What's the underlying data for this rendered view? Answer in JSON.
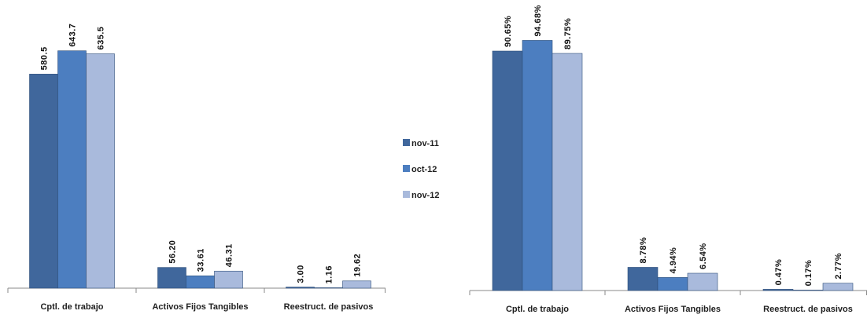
{
  "colors": {
    "nov-11": "#40679C",
    "oct-12": "#4C7EC0",
    "nov-12": "#A9BADC",
    "axis": "#8a8a8a"
  },
  "legend": {
    "items": [
      "nov-11",
      "oct-12",
      "nov-12"
    ]
  },
  "chart_data": [
    {
      "type": "bar",
      "categories": [
        "Cptl. de trabajo",
        "Activos Fijos  Tangibles",
        "Reestruct. de pasivos"
      ],
      "series": [
        {
          "name": "nov-11",
          "values": [
            580.5,
            56.2,
            3.0
          ],
          "labels": [
            "580.5",
            "56.20",
            "3.00"
          ]
        },
        {
          "name": "oct-12",
          "values": [
            643.7,
            33.61,
            1.16
          ],
          "labels": [
            "643.7",
            "33.61",
            "1.16"
          ]
        },
        {
          "name": "nov-12",
          "values": [
            635.5,
            46.31,
            19.62
          ],
          "labels": [
            "635.5",
            "46.31",
            "19.62"
          ]
        }
      ],
      "ylim": [
        0,
        660
      ],
      "grid": false,
      "legend": "right"
    },
    {
      "type": "bar",
      "categories": [
        "Cptl. de trabajo",
        "Activos Fijos  Tangibles",
        "Reestruct. de pasivos"
      ],
      "series": [
        {
          "name": "nov-11",
          "values": [
            90.65,
            8.78,
            0.47
          ],
          "labels": [
            "90.65%",
            "8.78%",
            "0.47%"
          ]
        },
        {
          "name": "oct-12",
          "values": [
            94.68,
            4.94,
            0.17
          ],
          "labels": [
            "94.68%",
            "4.94%",
            "0.17%"
          ]
        },
        {
          "name": "nov-12",
          "values": [
            89.75,
            6.54,
            2.77
          ],
          "labels": [
            "89.75%",
            "6.54%",
            "2.77%"
          ]
        }
      ],
      "ylim": [
        0,
        96
      ],
      "grid": false
    }
  ]
}
